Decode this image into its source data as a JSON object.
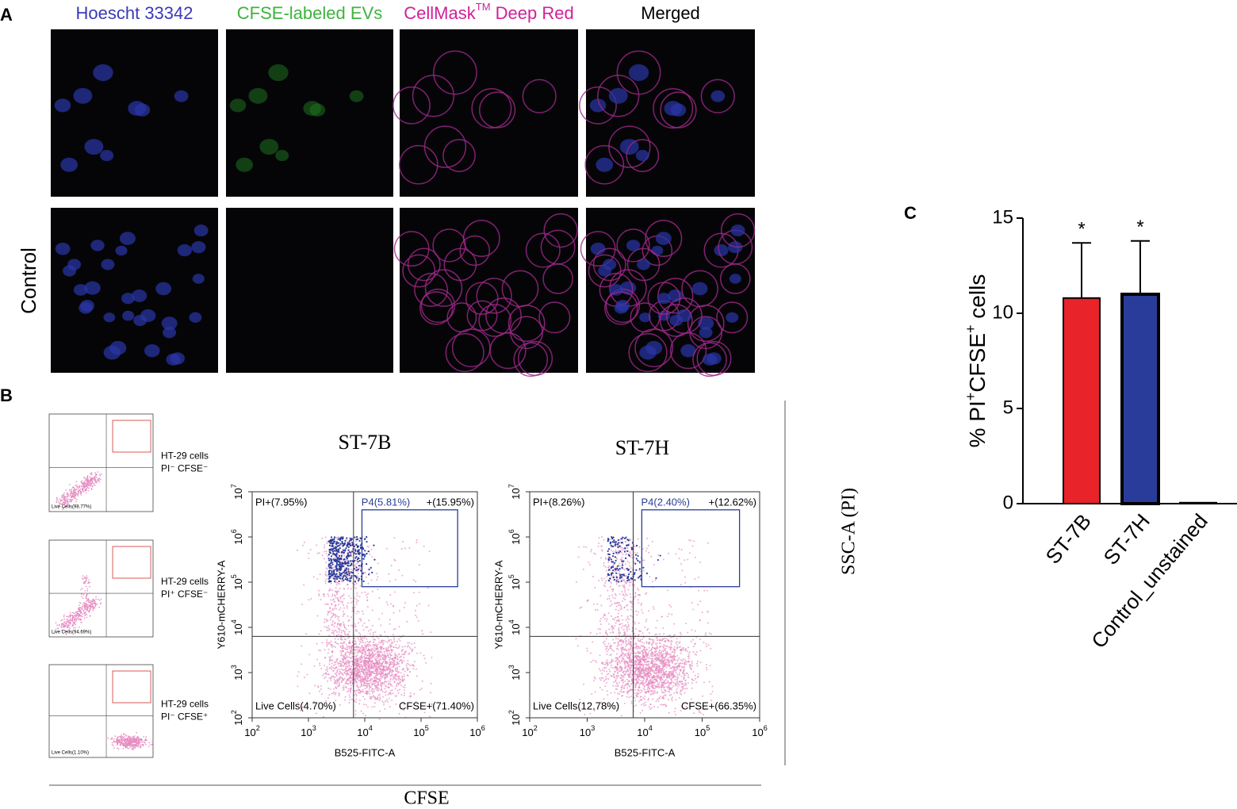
{
  "panels": {
    "a": "A",
    "b": "B",
    "c": "C"
  },
  "microscopy": {
    "columns": [
      {
        "text": "Hoescht 33342",
        "color": "#3a3ab8"
      },
      {
        "text": "CFSE-labeled EVs",
        "color": "#3cb43c"
      },
      {
        "text": "CellMask",
        "sup": "TM",
        "rest": " Deep Red",
        "color": "#d0209a"
      },
      {
        "text": "Merged",
        "color": "#000000"
      }
    ],
    "row_label": "Control"
  },
  "flow": {
    "x_axis": "CFSE",
    "y_axis": "SSC-A (PI)",
    "small_plots": [
      {
        "label": "HT-29 cells",
        "sublabel": "PI⁻ CFSE⁻",
        "gate": "Live Cells(98.77%)"
      },
      {
        "label": "HT-29 cells",
        "sublabel": "PI⁺ CFSE⁻",
        "gate": "Live Cells(94.69%)"
      },
      {
        "label": "HT-29 cells",
        "sublabel": "PI⁻ CFSE⁺",
        "gate": "Live Cells(1.10%)"
      }
    ],
    "plots": [
      {
        "title": "ST-7B",
        "x_label": "B525-FITC-A",
        "y_label": "Y610-mCHERRY-A",
        "quadrants": {
          "top_left": "PI+(7.95%)",
          "gate": "P4(5.81%)",
          "top_right": "+(15.95%)",
          "bottom_left": "Live Cells(4.70%)",
          "bottom_right": "CFSE+(71.40%)"
        }
      },
      {
        "title": "ST-7H",
        "x_label": "B525-FITC-A",
        "y_label": "Y610-mCHERRY-A",
        "quadrants": {
          "top_left": "PI+(8.26%)",
          "gate": "P4(2.40%)",
          "top_right": "+(12.62%)",
          "bottom_left": "Live Cells(12.78%)",
          "bottom_right": "CFSE+(66.35%)"
        }
      }
    ],
    "x_ticks": [
      {
        "base": "10",
        "exp": "2"
      },
      {
        "base": "10",
        "exp": "3"
      },
      {
        "base": "10",
        "exp": "4"
      },
      {
        "base": "10",
        "exp": "5"
      },
      {
        "base": "10",
        "exp": "6"
      }
    ],
    "y_ticks": [
      {
        "base": "10",
        "exp": "2"
      },
      {
        "base": "10",
        "exp": "3"
      },
      {
        "base": "10",
        "exp": "4"
      },
      {
        "base": "10",
        "exp": "5"
      },
      {
        "base": "10",
        "exp": "6"
      },
      {
        "base": "10",
        "exp": "7"
      }
    ]
  },
  "chart_data": {
    "type": "bar",
    "y_label": [
      "% PI",
      "+",
      "CFSE",
      "+",
      " cells"
    ],
    "categories": [
      "ST-7B",
      "ST-7H",
      "Control_unstained"
    ],
    "values": [
      10.8,
      11.0,
      0.05
    ],
    "errors": [
      2.9,
      2.8,
      0
    ],
    "annotations": [
      "*",
      "*",
      null
    ],
    "colors": [
      "#e8232a",
      "#2a3c9a",
      "#000000"
    ],
    "ylim": [
      0,
      15
    ],
    "yticks": [
      0,
      5,
      10,
      15
    ]
  }
}
